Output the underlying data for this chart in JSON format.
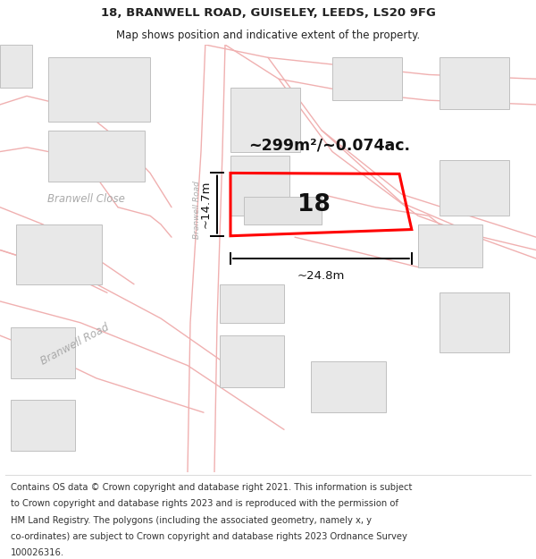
{
  "title": "18, BRANWELL ROAD, GUISELEY, LEEDS, LS20 9FG",
  "subtitle": "Map shows position and indicative extent of the property.",
  "background_color": "#ffffff",
  "map_bg": "#ffffff",
  "title_fontsize": 9.5,
  "subtitle_fontsize": 8.5,
  "footer_fontsize": 7.2,
  "area_text": "~299m²/~0.074ac.",
  "number_text": "18",
  "width_text": "~24.8m",
  "height_text": "~14.7m",
  "road_color": "#f0b0b0",
  "building_fill": "#e8e8e8",
  "building_edge": "#c0c0c0",
  "road_label_color": "#aaaaaa",
  "red_poly_color": "#ff0000",
  "footer_lines": [
    "Contains OS data © Crown copyright and database right 2021. This information is subject",
    "to Crown copyright and database rights 2023 and is reproduced with the permission of",
    "HM Land Registry. The polygons (including the associated geometry, namely x, y",
    "co-ordinates) are subject to Crown copyright and database rights 2023 Ordnance Survey",
    "100026316."
  ]
}
